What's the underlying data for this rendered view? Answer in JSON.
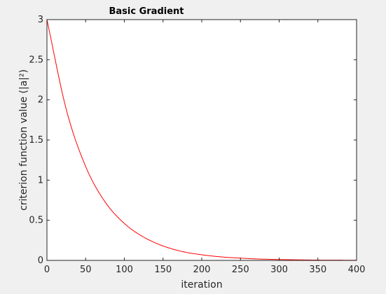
{
  "chart_data": {
    "type": "line",
    "title": "Basic Gradient",
    "xlabel": "iteration",
    "ylabel": "criterion function value (|a|²)",
    "xlim": [
      0,
      400
    ],
    "ylim": [
      0,
      3
    ],
    "xticks": [
      0,
      50,
      100,
      150,
      200,
      250,
      300,
      350,
      400
    ],
    "yticks": [
      0,
      0.5,
      1,
      1.5,
      2,
      2.5,
      3
    ],
    "xtick_labels": [
      "0",
      "50",
      "100",
      "150",
      "200",
      "250",
      "300",
      "350",
      "400"
    ],
    "ytick_labels": [
      "0",
      "0.5",
      "1",
      "1.5",
      "2",
      "2.5",
      "3"
    ],
    "grid": false,
    "series": [
      {
        "color": "#ff0000",
        "x": [
          0,
          25,
          50,
          75,
          100,
          125,
          150,
          175,
          200,
          225,
          250,
          275,
          300,
          325,
          350,
          375,
          400
        ],
        "y": [
          3.0,
          1.88,
          1.17,
          0.73,
          0.46,
          0.29,
          0.18,
          0.11,
          0.07,
          0.044,
          0.028,
          0.017,
          0.011,
          0.007,
          0.004,
          0.003,
          0.002
        ]
      }
    ]
  }
}
